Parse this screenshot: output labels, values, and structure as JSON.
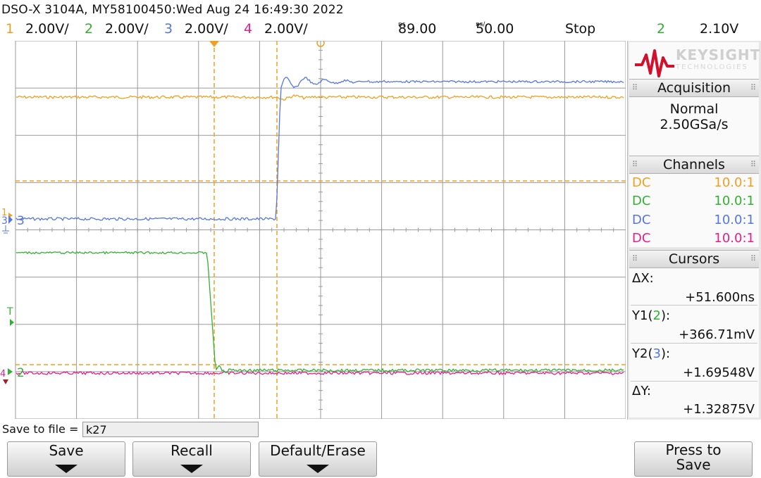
{
  "title": "DSO-X 3104A, MY58100450:Wed Aug 24 16:49:30 2022",
  "status": {
    "ch1": {
      "num": "1",
      "scale": "2.00V/"
    },
    "ch2": {
      "num": "2",
      "scale": "2.00V/"
    },
    "ch3": {
      "num": "3",
      "scale": "2.00V/"
    },
    "ch4": {
      "num": "4",
      "scale": "2.00V/"
    },
    "delay": "89.00",
    "delay_unit": "ns",
    "timebase": "50.00",
    "timebase_unit": "ns/",
    "run_state": "Stop",
    "trigger_channel": "2",
    "trigger_level": "2.10V"
  },
  "colors": {
    "ch1": "#f0a020",
    "ch2": "#33b033",
    "ch3": "#5577dd",
    "ch4": "#e0208f",
    "grid": "#9a9a9a",
    "brand": "#d0102c"
  },
  "brand": {
    "name": "KEYSIGHT",
    "sub": "TECHNOLOGIES"
  },
  "screen_markers": {
    "ch1": "1",
    "ch3": "3",
    "ch2": "2",
    "ch4": "4",
    "trigger": "T"
  },
  "acquisition": {
    "header": "Acquisition",
    "mode": "Normal",
    "rate": "2.50GSa/s"
  },
  "channels": {
    "header": "Channels",
    "items": [
      {
        "coupling": "DC",
        "probe": "10.0:1",
        "color": "#f0a020"
      },
      {
        "coupling": "DC",
        "probe": "10.0:1",
        "color": "#33b033"
      },
      {
        "coupling": "DC",
        "probe": "10.0:1",
        "color": "#5577dd"
      },
      {
        "coupling": "DC",
        "probe": "10.0:1",
        "color": "#e0208f"
      }
    ]
  },
  "cursors": {
    "header": "Cursors",
    "dx_label": "ΔX:",
    "dx_value": "+51.600ns",
    "y1_label_a": "Y1(",
    "y1_src": "2",
    "y1_label_b": "):",
    "y1_value": "+366.71mV",
    "y2_label_a": "Y2(",
    "y2_src": "3",
    "y2_label_b": "):",
    "y2_value": "+1.69548V",
    "dy_label": "ΔY:",
    "dy_value": "+1.32875V"
  },
  "save": {
    "label": "Save to file =",
    "filename": "k27"
  },
  "softkeys": {
    "save": "Save",
    "recall": "Recall",
    "default_erase": "Default/Erase",
    "press_to_save_1": "Press to",
    "press_to_save_2": "Save"
  }
}
